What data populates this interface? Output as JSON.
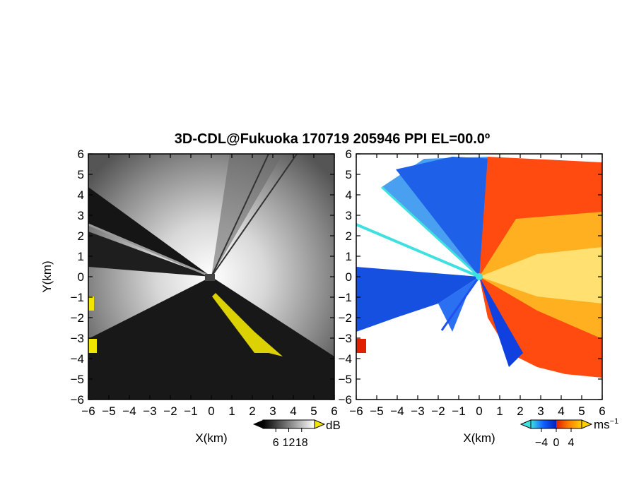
{
  "figure": {
    "title": "3D-CDL@Fukuoka 170719 205946 PPI EL=00.0º"
  },
  "chart_data": [
    {
      "type": "heatmap",
      "panel": "left",
      "xlabel": "X(km)",
      "ylabel": "Y(km)",
      "xlim": [
        -6,
        6
      ],
      "ylim": [
        -6,
        6
      ],
      "xticks": [
        "−6",
        "−5",
        "−4",
        "−3",
        "−2",
        "−1",
        "0",
        "1",
        "2",
        "3",
        "4",
        "5",
        "6"
      ],
      "yticks": [
        "6",
        "5",
        "4",
        "3",
        "2",
        "1",
        "0",
        "−1",
        "−2",
        "−3",
        "−4",
        "−5",
        "−6"
      ],
      "colorbar": {
        "unit": "dB",
        "ticks": [
          "6",
          "12",
          "18"
        ],
        "colors": [
          "#000000",
          "#ffffff"
        ],
        "overflow_color": "#f2e600"
      },
      "colormap": "grayscale"
    },
    {
      "type": "heatmap",
      "panel": "right",
      "xlabel": "X(km)",
      "ylabel": "",
      "xlim": [
        -6,
        6
      ],
      "ylim": [
        -6,
        6
      ],
      "xticks": [
        "−6",
        "−5",
        "−4",
        "−3",
        "−2",
        "−1",
        "0",
        "1",
        "2",
        "3",
        "4",
        "5",
        "6"
      ],
      "yticks": [
        "6",
        "5",
        "4",
        "3",
        "2",
        "1",
        "0",
        "−1",
        "−2",
        "−3",
        "−4",
        "−5",
        "−6"
      ],
      "colorbar": {
        "unit": "ms",
        "unit_exponent": "−1",
        "ticks": [
          "−4",
          "0",
          "4"
        ],
        "colors": [
          "#40e0e0",
          "#1060ff",
          "#0020c0",
          "#e02000",
          "#ff8000",
          "#ffd000"
        ]
      },
      "colormap": "diverging blue-red (radial velocity)"
    }
  ]
}
